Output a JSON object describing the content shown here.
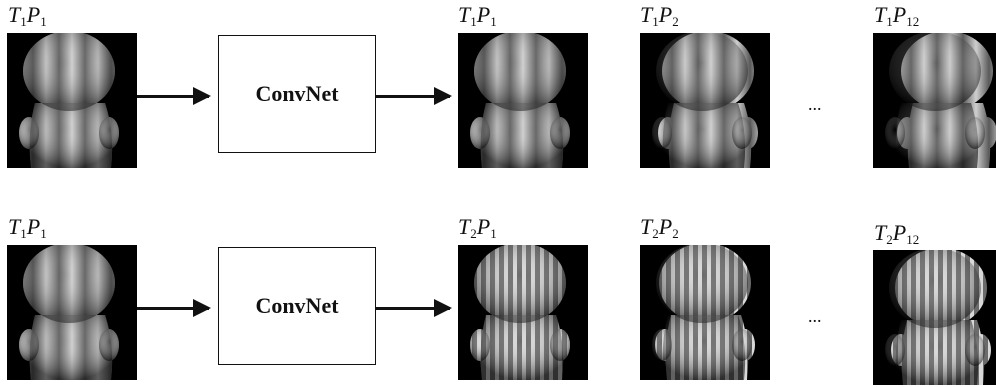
{
  "model": "ConvNet",
  "ellipsis": "...",
  "rows": [
    {
      "input": {
        "T": "T",
        "ti": "1",
        "P": "P",
        "pi": "1"
      },
      "outputs": [
        {
          "T": "T",
          "ti": "1",
          "P": "P",
          "pi": "1"
        },
        {
          "T": "T",
          "ti": "1",
          "P": "P",
          "pi": "2"
        },
        {
          "T": "T",
          "ti": "1",
          "P": "P",
          "pi": "12"
        }
      ]
    },
    {
      "input": {
        "T": "T",
        "ti": "1",
        "P": "P",
        "pi": "1"
      },
      "outputs": [
        {
          "T": "T",
          "ti": "2",
          "P": "P",
          "pi": "1"
        },
        {
          "T": "T",
          "ti": "2",
          "P": "P",
          "pi": "2"
        },
        {
          "T": "T",
          "ti": "2",
          "P": "P",
          "pi": "12"
        }
      ]
    }
  ]
}
